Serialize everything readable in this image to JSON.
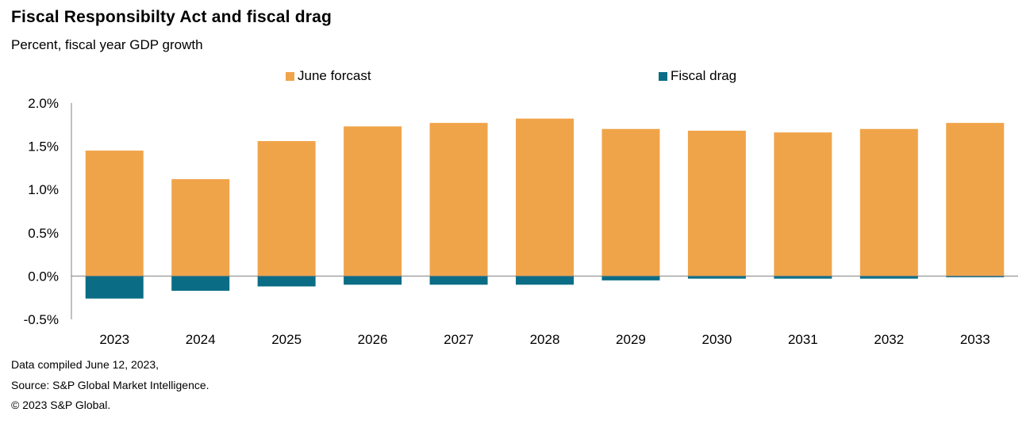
{
  "header": {
    "title": "Fiscal Responsibilty  Act and fiscal drag",
    "subtitle": "Percent,  fiscal year GDP  growth"
  },
  "legend": {
    "items": [
      {
        "label": "June forcast",
        "color": "#F0A44A"
      },
      {
        "label": "Fiscal drag",
        "color": "#0A6D85"
      }
    ]
  },
  "footer": {
    "line1": "Data compiled June 12, 2023,",
    "line2": "Source: S&P Global Market Intelligence.",
    "line3": "© 2023 S&P Global."
  },
  "chart_data": {
    "type": "bar",
    "categories": [
      "2023",
      "2024",
      "2025",
      "2026",
      "2027",
      "2028",
      "2029",
      "2030",
      "2031",
      "2032",
      "2033"
    ],
    "series": [
      {
        "name": "June forcast",
        "values": [
          1.45,
          1.12,
          1.56,
          1.73,
          1.77,
          1.82,
          1.7,
          1.68,
          1.66,
          1.7,
          1.77
        ],
        "color": "#F0A44A"
      },
      {
        "name": "Fiscal drag",
        "values": [
          -0.26,
          -0.17,
          -0.12,
          -0.1,
          -0.1,
          -0.1,
          -0.05,
          -0.03,
          -0.03,
          -0.03,
          -0.01
        ],
        "color": "#0A6D85"
      }
    ],
    "ylim": [
      -0.5,
      2.0
    ],
    "yticks": [
      "2.0%",
      "1.5%",
      "1.0%",
      "0.5%",
      "0.0%",
      "-0.5%"
    ],
    "ytick_values": [
      2.0,
      1.5,
      1.0,
      0.5,
      0.0,
      -0.5
    ],
    "legend_position": "top",
    "grid": false
  }
}
